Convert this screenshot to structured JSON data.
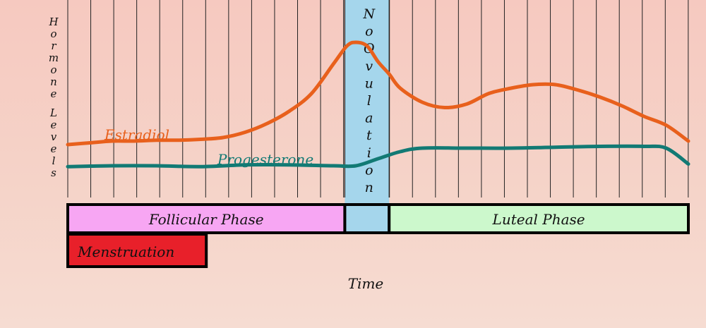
{
  "chart_data": {
    "type": "line",
    "ylabel": "Hormone Levels",
    "xlabel": "Time",
    "x_range": [
      0,
      28
    ],
    "y_range": [
      0,
      10
    ],
    "grid": "vertical",
    "series": [
      {
        "name": "Estradiol",
        "color": "#e8601c",
        "x": [
          0,
          1,
          2,
          3,
          4,
          5,
          6,
          7,
          8,
          9,
          10,
          11,
          12,
          12.6,
          13,
          13.5,
          14,
          14.5,
          15,
          16,
          17,
          18,
          19,
          20,
          21,
          22,
          23,
          24,
          25,
          26,
          27,
          28
        ],
        "y": [
          2.6,
          2.7,
          2.8,
          2.8,
          2.85,
          2.85,
          2.9,
          3.0,
          3.3,
          3.8,
          4.5,
          5.5,
          7.2,
          8.2,
          8.4,
          8.2,
          7.3,
          6.6,
          5.8,
          5.0,
          4.7,
          4.9,
          5.5,
          5.8,
          6.0,
          6.0,
          5.7,
          5.3,
          4.8,
          4.2,
          3.7,
          2.8
        ]
      },
      {
        "name": "Progesterone",
        "color": "#127a74",
        "x": [
          0,
          2,
          4,
          6,
          8,
          10,
          12,
          13,
          14,
          15,
          16,
          18,
          20,
          22,
          24,
          26,
          27,
          28
        ],
        "y": [
          1.35,
          1.4,
          1.4,
          1.35,
          1.45,
          1.45,
          1.4,
          1.4,
          1.8,
          2.2,
          2.4,
          2.4,
          2.4,
          2.45,
          2.5,
          2.5,
          2.4,
          1.5
        ]
      }
    ],
    "labels": {
      "estradiol": "Estradiol",
      "progesterone": "Progesterone"
    },
    "ovulation_band": {
      "text": "No Ovulation",
      "x_start": 12.5,
      "x_end": 14.5,
      "color": "#a5d6ec"
    },
    "phases": [
      {
        "label": "Follicular Phase",
        "x_start": 0,
        "x_end": 12.5,
        "color": "#f7a6f3"
      },
      {
        "label": "",
        "x_start": 12.5,
        "x_end": 14.5,
        "color": "#a5d6ec"
      },
      {
        "label": "Luteal Phase",
        "x_start": 14.5,
        "x_end": 28,
        "color": "#ccf8cc"
      }
    ],
    "menstruation": {
      "label": "Menstruation",
      "x_start": 0,
      "x_end": 6.25,
      "color": "#e8202a"
    }
  }
}
